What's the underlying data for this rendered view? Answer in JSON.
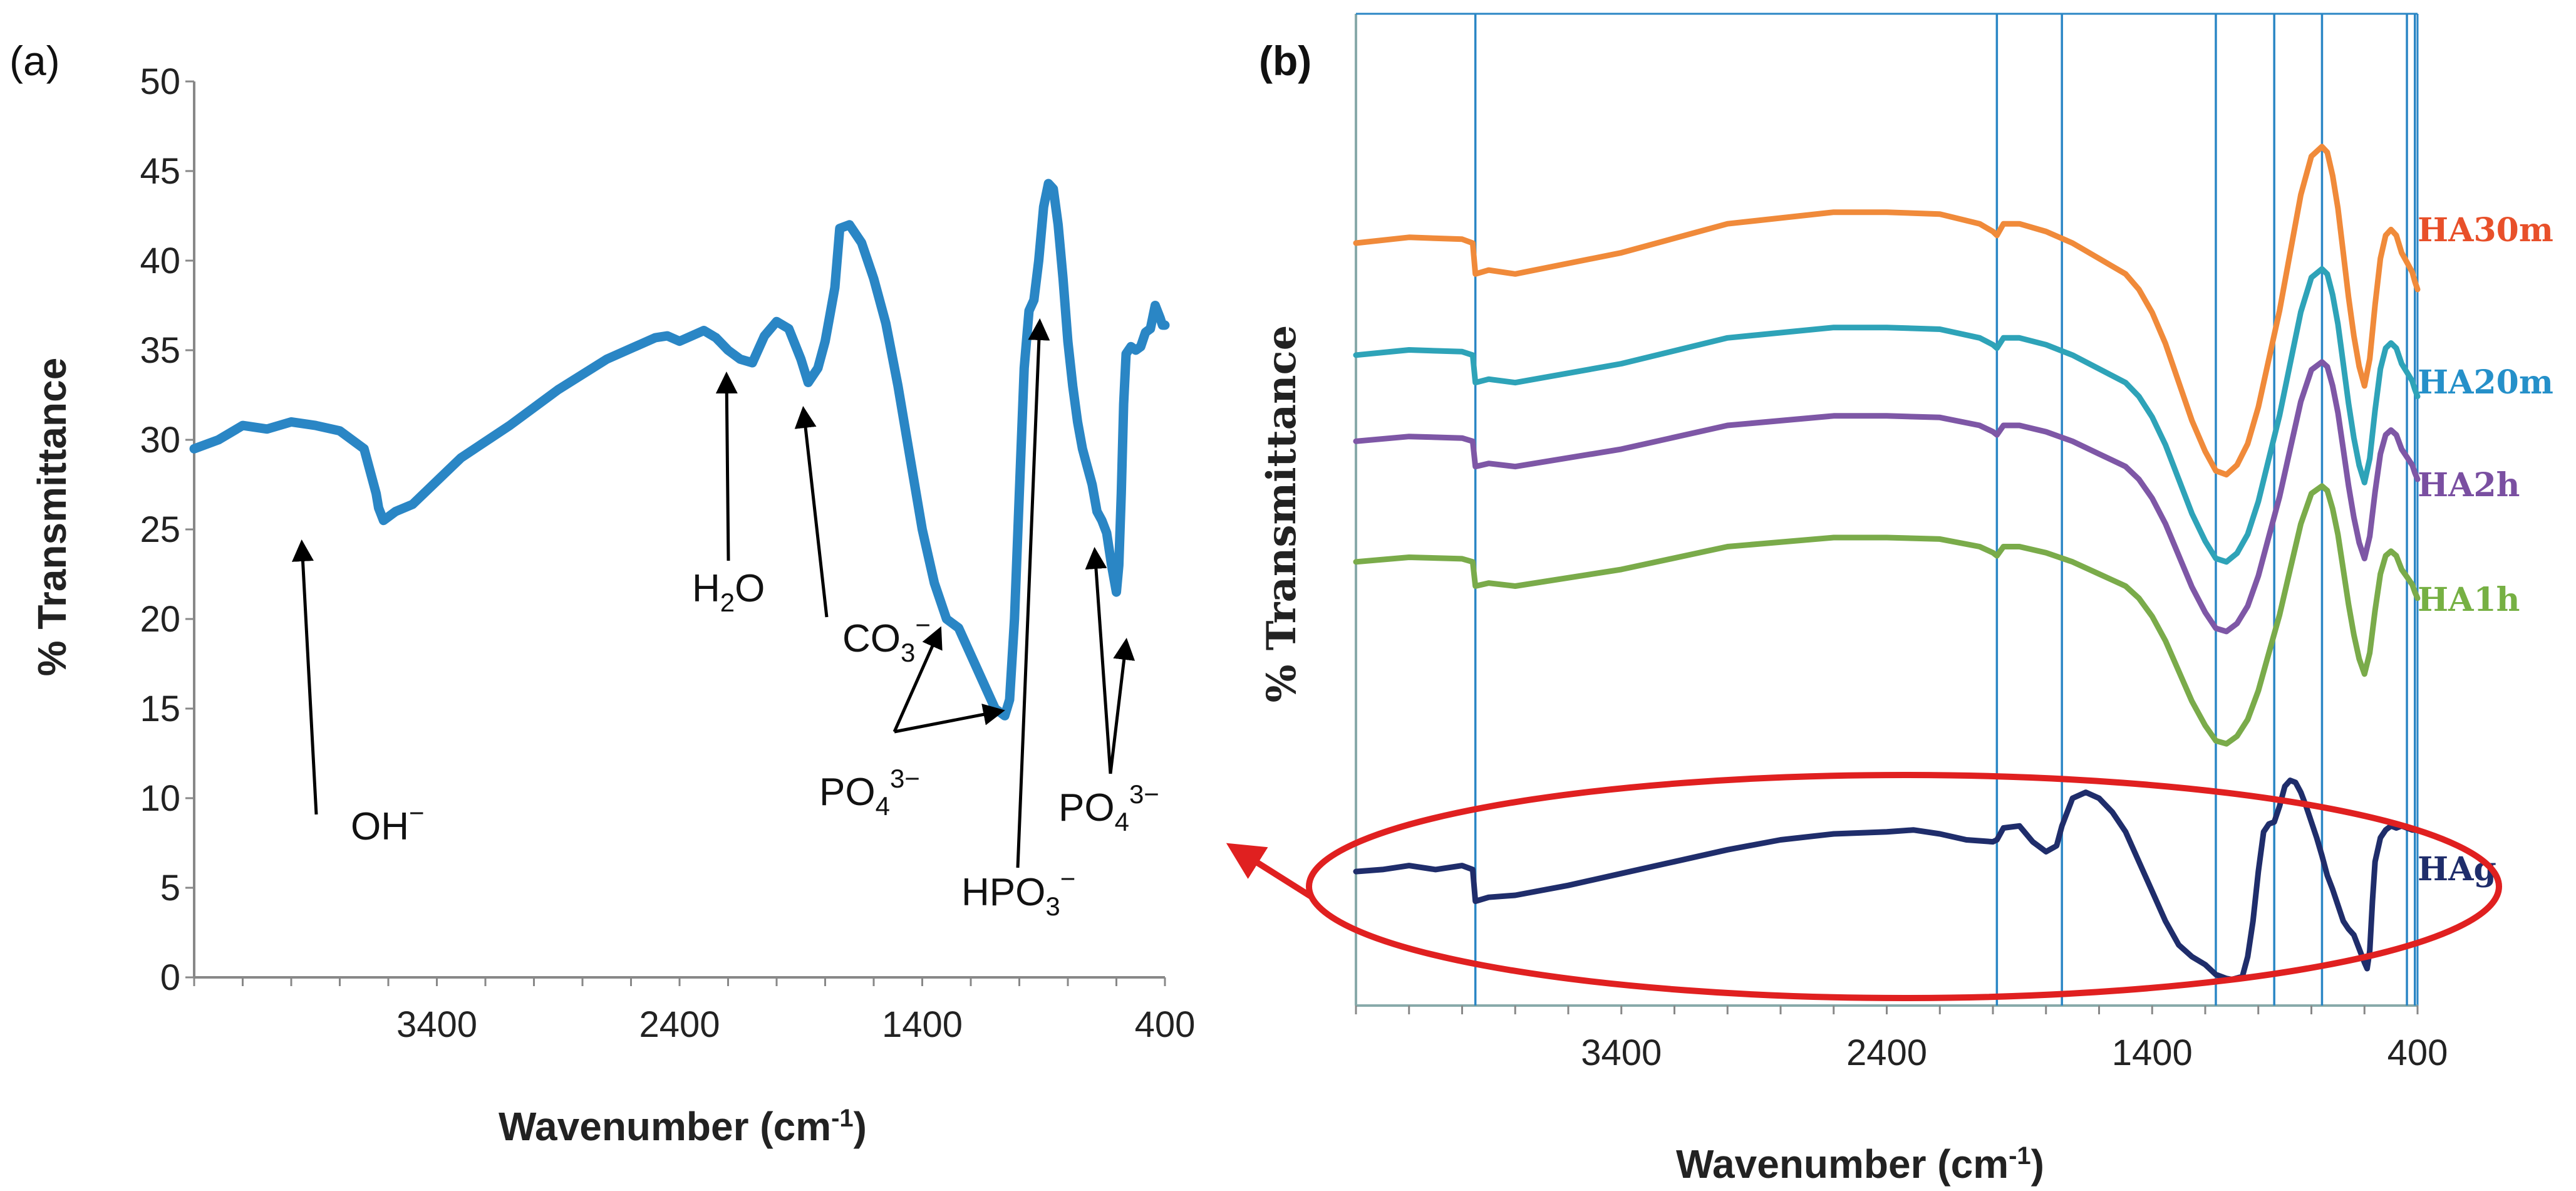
{
  "chart_data": [
    {
      "panel_label": "(a)",
      "type": "line",
      "xlabel_main": "Wavenumber (cm",
      "xlabel_sup": "-1",
      "xlabel_close": ")",
      "ylabel": "% Transmittance",
      "xlim": [
        4400,
        400
      ],
      "ylim": [
        0,
        50
      ],
      "x_ticks": [
        3400,
        2400,
        1400,
        400
      ],
      "x_tick_labels": [
        "3400",
        "2400",
        "1400",
        "400"
      ],
      "y_ticks": [
        0,
        5,
        10,
        15,
        20,
        25,
        30,
        35,
        40,
        45,
        50
      ],
      "y_tick_labels": [
        "0",
        "5",
        "10",
        "15",
        "20",
        "25",
        "30",
        "35",
        "40",
        "45",
        "50"
      ],
      "color": "#2a86c5",
      "series": [
        {
          "x": [
            4400,
            4300,
            4200,
            4100,
            4000,
            3900,
            3800,
            3700,
            3650,
            3640,
            3620,
            3570,
            3500,
            3400,
            3300,
            3100,
            2900,
            2700,
            2500,
            2450,
            2400,
            2350,
            2300,
            2250,
            2200,
            2150,
            2100,
            2050,
            2000,
            1950,
            1900,
            1870,
            1830,
            1800,
            1780,
            1760,
            1740,
            1700,
            1650,
            1600,
            1550,
            1500,
            1450,
            1400,
            1350,
            1300,
            1250,
            1200,
            1150,
            1100,
            1060,
            1040,
            1020,
            1000,
            980,
            960,
            940,
            920,
            900,
            880,
            860,
            840,
            820,
            800,
            780,
            760,
            740,
            720,
            700,
            680,
            660,
            640,
            620,
            600,
            590,
            580,
            570,
            560,
            540,
            520,
            500,
            480,
            460,
            440,
            420,
            410,
            400
          ],
          "y": [
            29.5,
            30,
            30.8,
            30.6,
            31,
            30.8,
            30.5,
            29.5,
            27,
            26.2,
            25.5,
            26,
            26.4,
            27.7,
            29,
            30.8,
            32.8,
            34.5,
            35.7,
            35.8,
            35.5,
            35.8,
            36.1,
            35.7,
            35,
            34.5,
            34.3,
            35.8,
            36.6,
            36.2,
            34.5,
            33.2,
            34,
            35.5,
            37,
            38.5,
            41.8,
            42,
            41,
            39,
            36.5,
            33,
            29,
            25,
            22,
            20,
            19.5,
            18,
            16.5,
            15,
            14.6,
            15.5,
            20,
            27,
            34,
            37.2,
            37.8,
            40,
            43,
            44.3,
            44,
            42,
            39,
            35.5,
            33,
            31,
            29.5,
            28.5,
            27.5,
            26,
            25.5,
            24.8,
            23,
            21.5,
            23,
            27,
            32,
            34.8,
            35.2,
            35,
            35.2,
            36,
            36.2,
            37.5,
            36.8,
            36.4,
            36.4
          ]
        }
      ],
      "annotations": [
        {
          "id": "oh",
          "label": "OH",
          "sup": "−"
        },
        {
          "id": "h2o",
          "label": "H",
          "sub": "2",
          "after": "O"
        },
        {
          "id": "co3",
          "label": "CO",
          "sub": "3",
          "sup": "−"
        },
        {
          "id": "po4a",
          "label": "PO",
          "sub": "4",
          "sup": "3−"
        },
        {
          "id": "hpo3",
          "label": "HPO",
          "sub": "3",
          "sup": "−"
        },
        {
          "id": "po4b",
          "label": "PO",
          "sub": "4",
          "sup": "3−"
        }
      ]
    },
    {
      "panel_label": "(b)",
      "type": "line",
      "xlabel_main": "Wavenumber (cm",
      "xlabel_sup": "-1",
      "xlabel_close": ")",
      "ylabel": "% Transmittance",
      "xlim": [
        4400,
        400
      ],
      "x_ticks": [
        3400,
        2400,
        1400,
        400
      ],
      "x_tick_labels": [
        "3400",
        "2400",
        "1400",
        "400"
      ],
      "reference_lines": [
        3950,
        1985,
        1740,
        1160,
        940,
        760,
        440,
        410
      ],
      "series": [
        {
          "name": "HA30m",
          "color": "#f08a3a",
          "label_color": "#e8502a",
          "offset": 30.5
        },
        {
          "name": "HA20m",
          "color": "#2ea3b8",
          "label_color": "#2590c9",
          "offset": 24
        },
        {
          "name": "HA2h",
          "color": "#7e57a6",
          "label_color": "#7a4fa1",
          "offset": 19
        },
        {
          "name": "HA1h",
          "color": "#7aab4a",
          "label_color": "#76b043",
          "offset": 12
        },
        {
          "name": "HAg",
          "color": "#1f2d6b",
          "label_color": "#1f2d6b",
          "offset": 0
        }
      ],
      "highlight": "HAg",
      "highlight_color": "#e02020"
    }
  ]
}
